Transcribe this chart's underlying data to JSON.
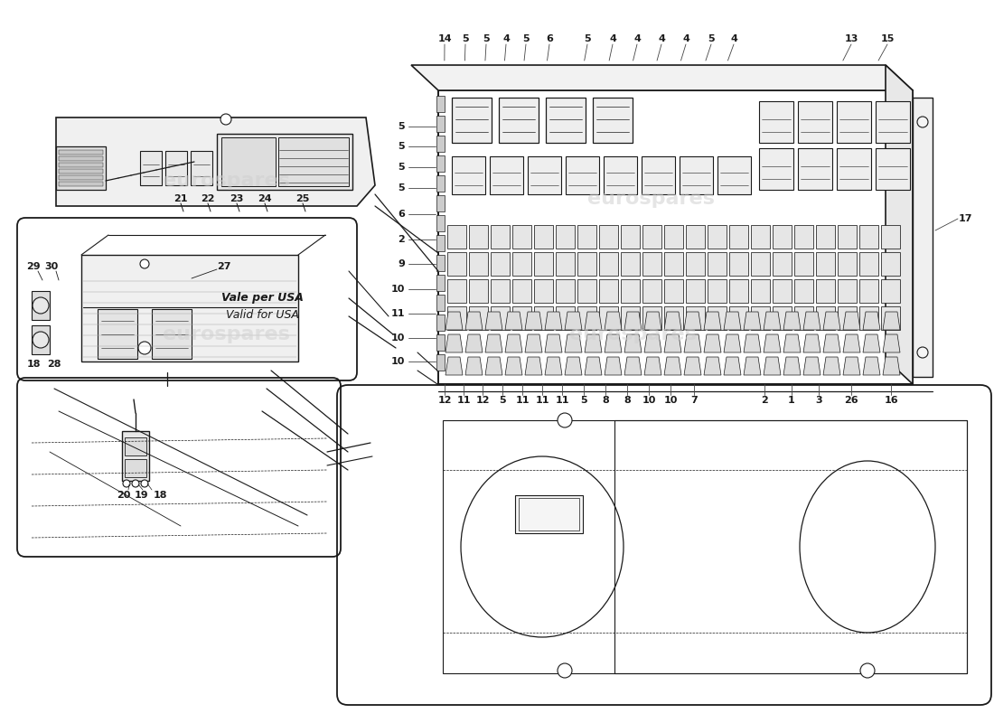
{
  "bg_color": "#ffffff",
  "line_color": "#1a1a1a",
  "watermark_color": "#d0d0d0",
  "usa_text1": "Vale per USA",
  "usa_text2": "Valid for USA",
  "top_callouts": [
    "14",
    "5",
    "5",
    "4",
    "5",
    "6",
    "5",
    "4",
    "4",
    "4",
    "4",
    "5",
    "4",
    "13",
    "15"
  ],
  "left_callouts": [
    "5",
    "5",
    "5",
    "5",
    "6",
    "2",
    "9",
    "10",
    "11",
    "10",
    "10"
  ],
  "bottom_callouts": [
    "12",
    "11",
    "12",
    "5",
    "11",
    "11",
    "11",
    "5",
    "8",
    "8",
    "10",
    "10",
    "7",
    "2",
    "1",
    "3",
    "26",
    "16"
  ],
  "top_section_labels": [
    "21",
    "22",
    "23",
    "24",
    "25"
  ],
  "usa_box_labels": [
    "29",
    "30",
    "18",
    "28",
    "27"
  ],
  "bot_box_labels": [
    "20",
    "19",
    "18"
  ]
}
